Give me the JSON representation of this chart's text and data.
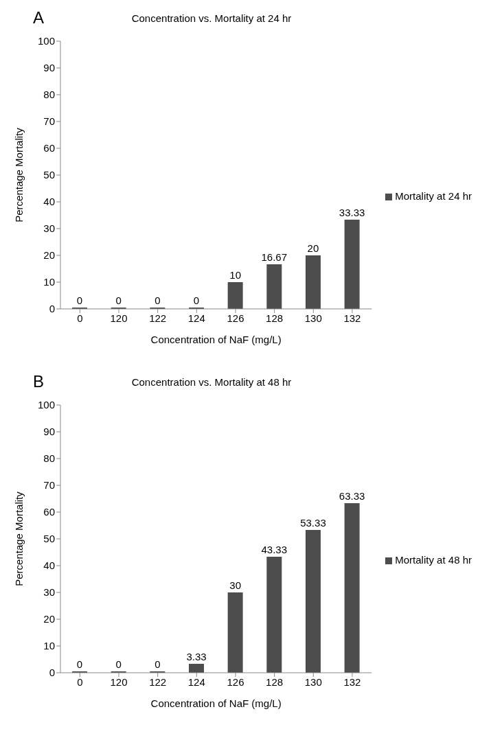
{
  "chart_data": [
    {
      "type": "bar",
      "title": "Concentration vs. Mortality at 24 hr",
      "annotations": [
        "A"
      ],
      "xlabel": "Concentration of NaF (mg/L)",
      "ylabel": "Percentage Mortality",
      "categories": [
        "0",
        "120",
        "122",
        "124",
        "126",
        "128",
        "130",
        "132"
      ],
      "series": [
        {
          "name": "Mortality at 24 hr",
          "color": "#4d4d4d",
          "values": [
            0,
            0,
            0,
            0,
            10,
            16.67,
            20,
            33.33
          ]
        }
      ],
      "ylim": [
        0,
        100
      ],
      "yticks": [
        0,
        10,
        20,
        30,
        40,
        50,
        60,
        70,
        80,
        90,
        100
      ],
      "data_labels": true,
      "legend": "right"
    },
    {
      "type": "bar",
      "title": "Concentration vs. Mortality at 48 hr",
      "annotations": [
        "B"
      ],
      "xlabel": "Concentration of NaF (mg/L)",
      "ylabel": "Percentage Mortality",
      "categories": [
        "0",
        "120",
        "122",
        "124",
        "126",
        "128",
        "130",
        "132"
      ],
      "series": [
        {
          "name": "Mortality at 48 hr",
          "color": "#4d4d4d",
          "values": [
            0,
            0,
            0,
            3.33,
            30,
            43.33,
            53.33,
            63.33
          ]
        }
      ],
      "ylim": [
        0,
        100
      ],
      "yticks": [
        0,
        10,
        20,
        30,
        40,
        50,
        60,
        70,
        80,
        90,
        100
      ],
      "data_labels": true,
      "legend": "right"
    }
  ]
}
